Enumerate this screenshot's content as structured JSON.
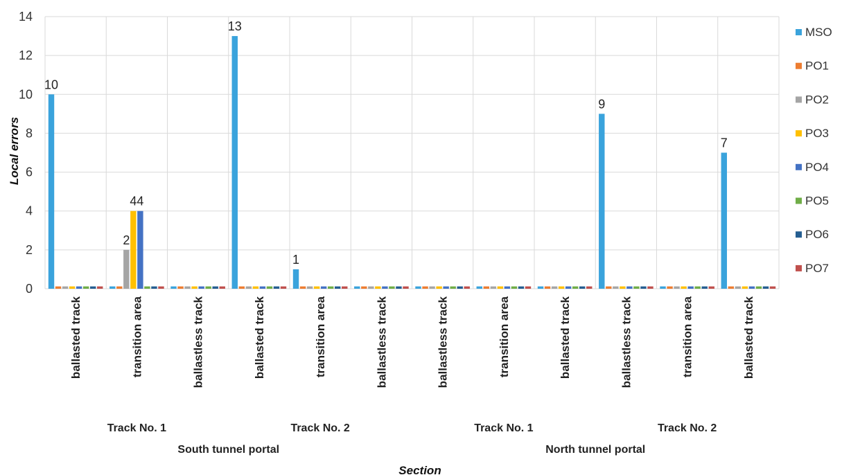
{
  "chart_data": {
    "type": "bar",
    "xlabel": "Section",
    "ylabel": "Local errors",
    "ylim": [
      0,
      14
    ],
    "yticks": [
      0,
      2,
      4,
      6,
      8,
      10,
      12,
      14
    ],
    "grid": true,
    "legend_position": "right",
    "categories": [
      "ballasted track",
      "transition area",
      "ballastless track",
      "ballasted track",
      "transition area",
      "ballastless track",
      "ballastless track",
      "transition area",
      "ballasted track",
      "ballastless track",
      "transition area",
      "ballasted track"
    ],
    "level1_groups": [
      {
        "label": "Track No. 1",
        "start": 0,
        "end": 2
      },
      {
        "label": "Track No. 2",
        "start": 3,
        "end": 5
      },
      {
        "label": "Track No. 1",
        "start": 6,
        "end": 8
      },
      {
        "label": "Track No. 2",
        "start": 9,
        "end": 11
      }
    ],
    "level2_groups": [
      {
        "label": "South tunnel portal",
        "start": 0,
        "end": 5
      },
      {
        "label": "North tunnel portal",
        "start": 6,
        "end": 11
      }
    ],
    "series": [
      {
        "name": "MSO",
        "color": "#3aa3dc",
        "values": [
          10,
          0,
          0,
          13,
          1,
          0,
          0,
          0,
          0,
          9,
          0,
          7
        ]
      },
      {
        "name": "PO1",
        "color": "#ed7d31",
        "values": [
          0,
          0,
          0,
          0,
          0,
          0,
          0,
          0,
          0,
          0,
          0,
          0
        ]
      },
      {
        "name": "PO2",
        "color": "#a5a5a5",
        "values": [
          0,
          2,
          0,
          0,
          0,
          0,
          0,
          0,
          0,
          0,
          0,
          0
        ]
      },
      {
        "name": "PO3",
        "color": "#ffc000",
        "values": [
          0,
          4,
          0,
          0,
          0,
          0,
          0,
          0,
          0,
          0,
          0,
          0
        ]
      },
      {
        "name": "PO4",
        "color": "#4472c4",
        "values": [
          0,
          4,
          0,
          0,
          0,
          0,
          0,
          0,
          0,
          0,
          0,
          0
        ]
      },
      {
        "name": "PO5",
        "color": "#70ad47",
        "values": [
          0,
          0,
          0,
          0,
          0,
          0,
          0,
          0,
          0,
          0,
          0,
          0
        ]
      },
      {
        "name": "PO6",
        "color": "#255e91",
        "values": [
          0,
          0,
          0,
          0,
          0,
          0,
          0,
          0,
          0,
          0,
          0,
          0
        ]
      },
      {
        "name": "PO7",
        "color": "#c0504d",
        "values": [
          0,
          0,
          0,
          0,
          0,
          0,
          0,
          0,
          0,
          0,
          0,
          0
        ]
      }
    ],
    "data_labels": [
      {
        "category": 0,
        "series": 0,
        "text": "10"
      },
      {
        "category": 1,
        "series": 2,
        "text": "2"
      },
      {
        "category": 1,
        "series": 3,
        "text": "4"
      },
      {
        "category": 1,
        "series": 4,
        "text": "4"
      },
      {
        "category": 3,
        "series": 0,
        "text": "13"
      },
      {
        "category": 4,
        "series": 0,
        "text": "1"
      },
      {
        "category": 9,
        "series": 0,
        "text": "9"
      },
      {
        "category": 11,
        "series": 0,
        "text": "7"
      }
    ]
  }
}
